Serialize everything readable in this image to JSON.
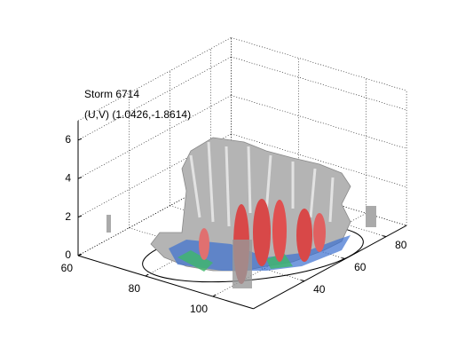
{
  "chart_data": {
    "type": "surface3d",
    "title": "Storm 6714",
    "subtitle": "(U,V) (1.0426,-1.8614)",
    "xlim": [
      60,
      112
    ],
    "xticks": [
      60,
      80,
      100
    ],
    "ylim": [
      15,
      90
    ],
    "yticks": [
      40,
      60,
      80
    ],
    "zlim": [
      0,
      7
    ],
    "zticks": [
      0,
      2,
      4,
      6
    ],
    "grid": true
  }
}
